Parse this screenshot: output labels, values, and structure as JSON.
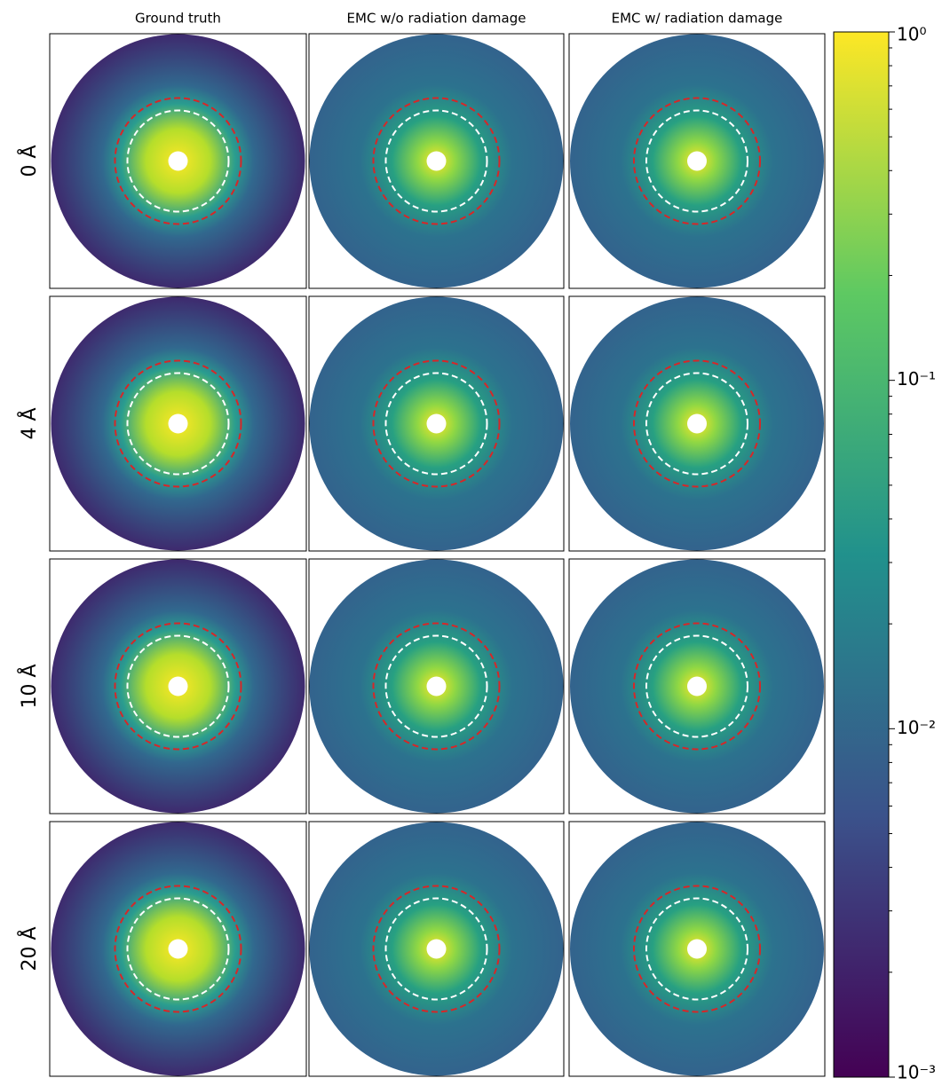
{
  "chart_data": {
    "type": "heatmap-grid",
    "columns": [
      "Ground truth",
      "EMC w/o radiation damage",
      "EMC w/ radiation damage"
    ],
    "rows": [
      "0 Å",
      "4 Å",
      "10 Å",
      "20 Å"
    ],
    "colorbar": {
      "scale": "log",
      "lim": [
        0.001,
        1
      ],
      "ticks": [
        {
          "value": 1,
          "label": "10⁰"
        },
        {
          "value": 0.1,
          "label": "10⁻¹"
        },
        {
          "value": 0.01,
          "label": "10⁻²"
        },
        {
          "value": 0.001,
          "label": "10⁻³"
        }
      ],
      "colors": [
        "#440154",
        "#3b528b",
        "#21918c",
        "#5ec962",
        "#fde725"
      ]
    }
  }
}
